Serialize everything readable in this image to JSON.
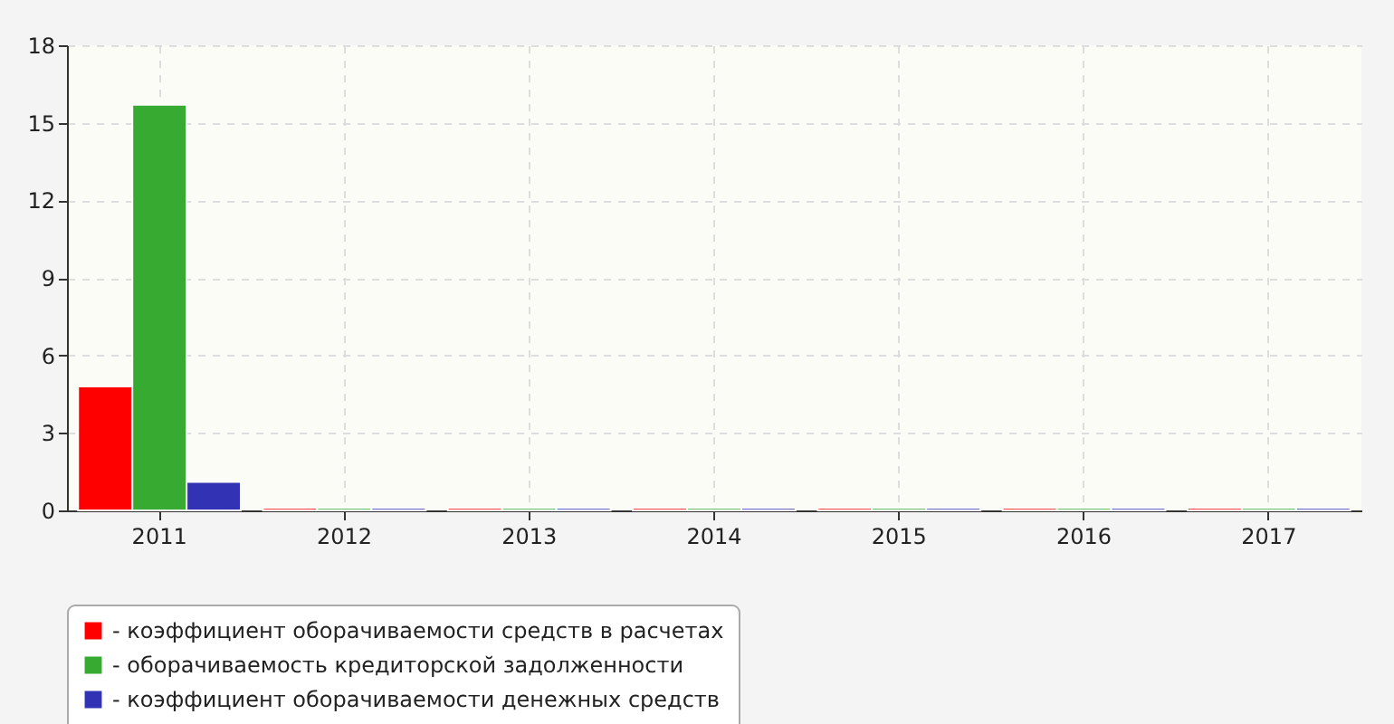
{
  "chart_data": {
    "type": "bar",
    "categories": [
      "2011",
      "2012",
      "2013",
      "2014",
      "2015",
      "2016",
      "2017"
    ],
    "series": [
      {
        "name": "- коэффициент оборачиваемости средств в расчетах",
        "color": "#ff0000",
        "values": [
          4.8,
          0.1,
          0.1,
          0.1,
          0.1,
          0.1,
          0.1
        ]
      },
      {
        "name": "- оборачиваемость кредиторской задолженности",
        "color": "#37aa32",
        "values": [
          15.7,
          0.1,
          0.1,
          0.1,
          0.1,
          0.1,
          0.1
        ]
      },
      {
        "name": "- коэффициент оборачиваемости денежных средств",
        "color": "#3232b4",
        "values": [
          1.1,
          0.1,
          0.1,
          0.1,
          0.1,
          0.1,
          0.1
        ]
      }
    ],
    "ylim": [
      0,
      18
    ],
    "yticks": [
      0,
      3,
      6,
      9,
      12,
      15,
      18
    ],
    "grid": true,
    "legend": "bottom"
  }
}
